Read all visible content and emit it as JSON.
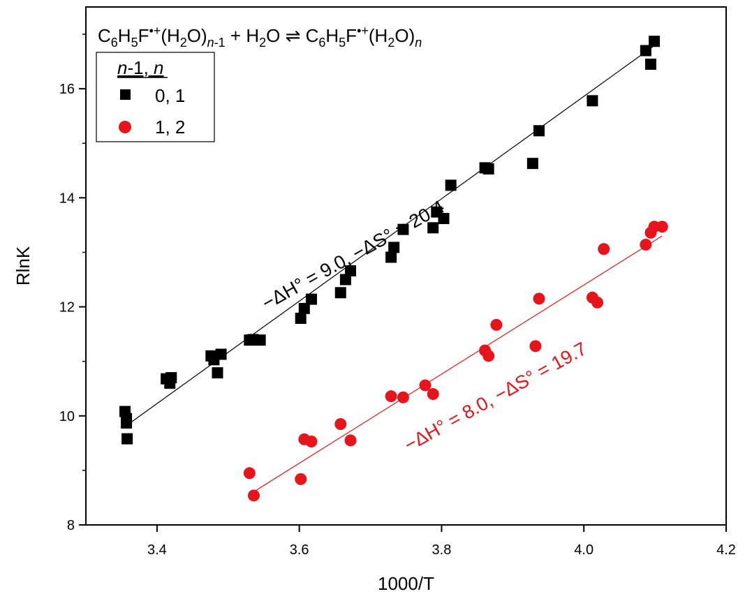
{
  "chart_data": {
    "type": "scatter",
    "title": {
      "parts": [
        {
          "t": "C"
        },
        {
          "t": "6",
          "sub": true
        },
        {
          "t": "H"
        },
        {
          "t": "5",
          "sub": true
        },
        {
          "t": "F"
        },
        {
          "t": "•+",
          "sup": true
        },
        {
          "t": "(H"
        },
        {
          "t": "2",
          "sub": true
        },
        {
          "t": "O)"
        },
        {
          "t": "n-1",
          "sub": true,
          "italic_n": true
        },
        {
          "t": " + H"
        },
        {
          "t": "2",
          "sub": true
        },
        {
          "t": "O ⇌ C"
        },
        {
          "t": "6",
          "sub": true
        },
        {
          "t": "H"
        },
        {
          "t": "5",
          "sub": true
        },
        {
          "t": "F"
        },
        {
          "t": "•+",
          "sup": true
        },
        {
          "t": "(H"
        },
        {
          "t": "2",
          "sub": true
        },
        {
          "t": "O)"
        },
        {
          "t": "n",
          "sub": true,
          "italic": true
        }
      ]
    },
    "xlabel": "1000/T",
    "ylabel": "RlnK",
    "xlim": [
      3.3,
      4.2
    ],
    "ylim": [
      8,
      17.5
    ],
    "xticks": [
      3.4,
      3.6,
      3.8,
      4.0,
      4.2
    ],
    "xtick_labels": [
      "3.4",
      "3.6",
      "3.8",
      "4.0",
      "4.2"
    ],
    "yticks": [
      8,
      10,
      12,
      14,
      16
    ],
    "ytick_labels": [
      "8",
      "10",
      "12",
      "14",
      "16"
    ],
    "grid": false,
    "legend": {
      "title": "n-1, n",
      "placement": "top-left",
      "entries": [
        "0, 1",
        "1, 2"
      ]
    },
    "series": [
      {
        "name": "0, 1",
        "marker": "square",
        "color": "#000000",
        "points": [
          [
            3.355,
            10.08
          ],
          [
            3.357,
            9.95
          ],
          [
            3.357,
            9.87
          ],
          [
            3.358,
            9.58
          ],
          [
            3.413,
            10.68
          ],
          [
            3.418,
            10.6
          ],
          [
            3.42,
            10.7
          ],
          [
            3.476,
            11.1
          ],
          [
            3.48,
            11.03
          ],
          [
            3.485,
            10.79
          ],
          [
            3.49,
            11.13
          ],
          [
            3.53,
            11.39
          ],
          [
            3.535,
            11.4
          ],
          [
            3.545,
            11.39
          ],
          [
            3.602,
            11.79
          ],
          [
            3.607,
            11.97
          ],
          [
            3.617,
            12.14
          ],
          [
            3.658,
            12.26
          ],
          [
            3.665,
            12.5
          ],
          [
            3.672,
            12.66
          ],
          [
            3.729,
            12.91
          ],
          [
            3.733,
            13.09
          ],
          [
            3.746,
            13.42
          ],
          [
            3.788,
            13.45
          ],
          [
            3.793,
            13.74
          ],
          [
            3.803,
            13.62
          ],
          [
            3.813,
            14.23
          ],
          [
            3.861,
            14.55
          ],
          [
            3.866,
            14.53
          ],
          [
            3.928,
            14.63
          ],
          [
            3.937,
            15.23
          ],
          [
            4.012,
            15.78
          ],
          [
            4.087,
            16.7
          ],
          [
            4.094,
            16.45
          ],
          [
            4.099,
            16.87
          ]
        ],
        "fit": {
          "x": [
            3.36,
            4.1
          ],
          "y": [
            9.85,
            16.8
          ]
        }
      },
      {
        "name": "1, 2",
        "marker": "circle",
        "color": "#e8141b",
        "points": [
          [
            3.53,
            8.95
          ],
          [
            3.536,
            8.54
          ],
          [
            3.602,
            8.84
          ],
          [
            3.607,
            9.57
          ],
          [
            3.617,
            9.53
          ],
          [
            3.658,
            9.85
          ],
          [
            3.672,
            9.55
          ],
          [
            3.729,
            10.36
          ],
          [
            3.746,
            10.34
          ],
          [
            3.777,
            10.56
          ],
          [
            3.788,
            10.4
          ],
          [
            3.861,
            11.2
          ],
          [
            3.866,
            11.1
          ],
          [
            3.877,
            11.67
          ],
          [
            3.932,
            11.28
          ],
          [
            3.937,
            12.15
          ],
          [
            4.012,
            12.17
          ],
          [
            4.019,
            12.08
          ],
          [
            4.028,
            13.06
          ],
          [
            4.087,
            13.14
          ],
          [
            4.094,
            13.36
          ],
          [
            4.099,
            13.47
          ],
          [
            4.11,
            13.47
          ]
        ],
        "fit": {
          "x": [
            3.535,
            4.11
          ],
          "y": [
            8.6,
            13.3
          ]
        }
      }
    ],
    "annotations": [
      {
        "text": "−ΔH° = 9.0, −ΔS° = 20.4",
        "color": "#000000",
        "anchor": [
          3.68,
          12.85
        ],
        "angle": -29
      },
      {
        "text": "−ΔH° = 8.0, −ΔS° = 19.7",
        "color": "#e8141b",
        "anchor": [
          3.88,
          10.25
        ],
        "angle": -29
      }
    ]
  }
}
